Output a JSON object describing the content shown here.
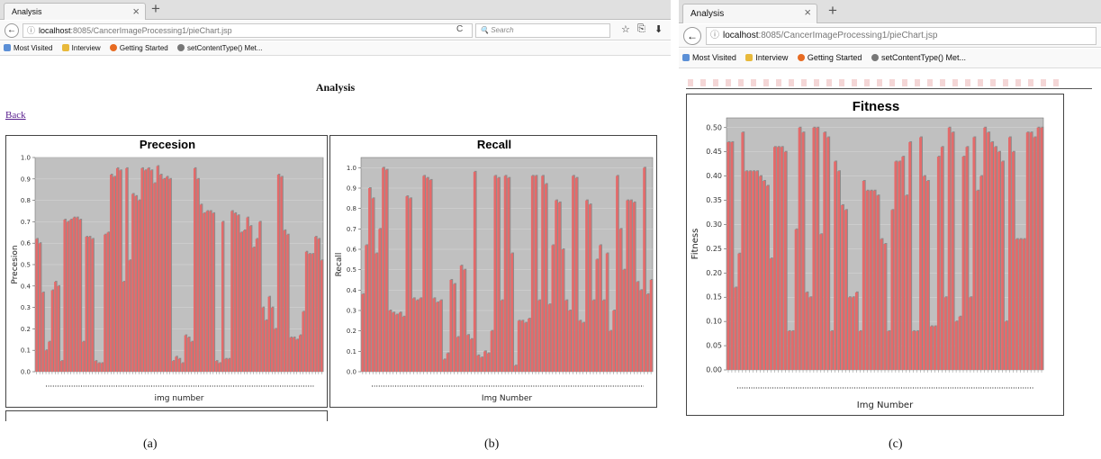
{
  "left_window": {
    "tab_title": "Analysis",
    "tab_close": "×",
    "new_tab": "+",
    "back_glyph": "←",
    "info_glyph": "ⓘ",
    "url_host": "localhost",
    "url_path": ":8085/CancerImageProcessing1/pieChart.jsp",
    "reload_glyph": "C",
    "search_placeholder": "Search",
    "search_glyph": "🔍",
    "toolbar_icons": [
      "star-icon",
      "reading-list-icon",
      "download-icon"
    ],
    "toolbar_glyphs": [
      "☆",
      "⎘",
      "⬇"
    ],
    "bookmarks": [
      "Most Visited",
      "Interview",
      "Getting Started",
      "setContentType() Met..."
    ],
    "page_title": "Analysis",
    "back_link": "Back",
    "caption": "(a)"
  },
  "middle_caption": "(b)",
  "right_window": {
    "tab_title": "Analysis",
    "tab_close": "×",
    "new_tab": "+",
    "back_glyph": "←",
    "info_glyph": "ⓘ",
    "url_host": "localhost",
    "url_path": ":8085/CancerImageProcessing1/pieChart.jsp",
    "bookmarks": [
      "Most Visited",
      "Interview",
      "Getting Started",
      "setContentType() Met..."
    ],
    "caption": "(c)"
  },
  "colors": {
    "plot_bg": "#c0c0c0",
    "bar": "#e46a6a",
    "bar_shadow": "#8c8c8c",
    "bookmark_icons": [
      "#5b8fd6",
      "#e8b93b",
      "#e76b22",
      "#777777"
    ]
  },
  "chart_data": [
    {
      "type": "bar",
      "title": "Precesion",
      "xlabel": "img number",
      "ylabel": "Precesion",
      "ylim": [
        0,
        1.0
      ],
      "yticks": [
        "0.0",
        "0.1",
        "0.2",
        "0.3",
        "0.4",
        "0.5",
        "0.6",
        "0.7",
        "0.8",
        "0.9",
        "1.0"
      ],
      "values": [
        0.62,
        0.6,
        0.37,
        0.1,
        0.14,
        0.38,
        0.42,
        0.4,
        0.05,
        0.71,
        0.7,
        0.71,
        0.72,
        0.72,
        0.71,
        0.14,
        0.63,
        0.63,
        0.62,
        0.05,
        0.04,
        0.04,
        0.64,
        0.65,
        0.92,
        0.91,
        0.95,
        0.94,
        0.42,
        0.95,
        0.52,
        0.83,
        0.82,
        0.8,
        0.95,
        0.94,
        0.95,
        0.94,
        0.88,
        0.96,
        0.92,
        0.9,
        0.91,
        0.9,
        0.05,
        0.07,
        0.06,
        0.04,
        0.17,
        0.16,
        0.14,
        0.95,
        0.9,
        0.78,
        0.74,
        0.75,
        0.75,
        0.74,
        0.05,
        0.04,
        0.7,
        0.06,
        0.06,
        0.75,
        0.74,
        0.73,
        0.65,
        0.66,
        0.72,
        0.68,
        0.58,
        0.62,
        0.7,
        0.3,
        0.24,
        0.35,
        0.3,
        0.2,
        0.92,
        0.91,
        0.66,
        0.64,
        0.16,
        0.16,
        0.15,
        0.17,
        0.28,
        0.56,
        0.55,
        0.55,
        0.63,
        0.62,
        0.52
      ]
    },
    {
      "type": "bar",
      "title": "Recall",
      "xlabel": "Img Number",
      "ylabel": "Recall",
      "ylim": [
        0,
        1.05
      ],
      "yticks": [
        "0.0",
        "0.1",
        "0.2",
        "0.3",
        "0.4",
        "0.5",
        "0.6",
        "0.7",
        "0.8",
        "0.9",
        "1.0"
      ],
      "values": [
        0.38,
        0.62,
        0.9,
        0.85,
        0.58,
        0.7,
        1.0,
        0.99,
        0.3,
        0.29,
        0.28,
        0.29,
        0.27,
        0.86,
        0.85,
        0.36,
        0.35,
        0.36,
        0.96,
        0.95,
        0.94,
        0.36,
        0.34,
        0.35,
        0.06,
        0.09,
        0.45,
        0.43,
        0.17,
        0.52,
        0.5,
        0.18,
        0.16,
        0.98,
        0.08,
        0.07,
        0.1,
        0.09,
        0.2,
        0.96,
        0.95,
        0.35,
        0.96,
        0.95,
        0.58,
        0.03,
        0.25,
        0.25,
        0.24,
        0.26,
        0.96,
        0.96,
        0.35,
        0.96,
        0.92,
        0.33,
        0.62,
        0.84,
        0.83,
        0.6,
        0.35,
        0.3,
        0.96,
        0.95,
        0.25,
        0.24,
        0.84,
        0.82,
        0.35,
        0.55,
        0.62,
        0.35,
        0.58,
        0.2,
        0.3,
        0.96,
        0.7,
        0.5,
        0.84,
        0.84,
        0.83,
        0.44,
        0.4,
        1.0,
        0.38,
        0.45
      ]
    },
    {
      "type": "bar",
      "title": "Fitness",
      "xlabel": "Img Number",
      "ylabel": "Fitness",
      "ylim": [
        0,
        0.52
      ],
      "yticks": [
        "0.00",
        "0.05",
        "0.10",
        "0.15",
        "0.20",
        "0.25",
        "0.30",
        "0.35",
        "0.40",
        "0.45",
        "0.50"
      ],
      "values": [
        0.47,
        0.47,
        0.17,
        0.24,
        0.49,
        0.41,
        0.41,
        0.41,
        0.41,
        0.4,
        0.39,
        0.38,
        0.23,
        0.46,
        0.46,
        0.46,
        0.45,
        0.08,
        0.08,
        0.29,
        0.5,
        0.49,
        0.16,
        0.15,
        0.5,
        0.5,
        0.28,
        0.49,
        0.48,
        0.08,
        0.43,
        0.41,
        0.34,
        0.33,
        0.15,
        0.15,
        0.16,
        0.08,
        0.39,
        0.37,
        0.37,
        0.37,
        0.36,
        0.27,
        0.26,
        0.08,
        0.33,
        0.43,
        0.43,
        0.44,
        0.36,
        0.47,
        0.08,
        0.08,
        0.48,
        0.4,
        0.39,
        0.09,
        0.09,
        0.44,
        0.46,
        0.15,
        0.5,
        0.49,
        0.1,
        0.11,
        0.44,
        0.46,
        0.15,
        0.48,
        0.37,
        0.4,
        0.5,
        0.49,
        0.47,
        0.46,
        0.45,
        0.43,
        0.1,
        0.48,
        0.45,
        0.27,
        0.27,
        0.27,
        0.49,
        0.49,
        0.48,
        0.5,
        0.5
      ]
    }
  ]
}
